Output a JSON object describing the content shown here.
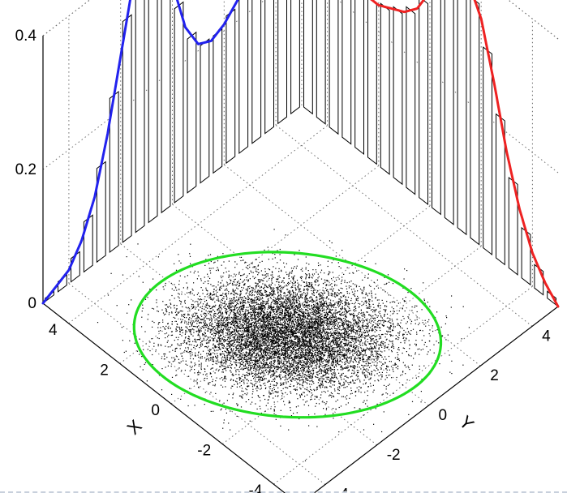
{
  "chart_data": {
    "type": "scatter",
    "title": "",
    "xlabel": "X",
    "ylabel": "Y",
    "xlim": [
      -5,
      5
    ],
    "ylim": [
      -5,
      5
    ],
    "zlim": [
      0,
      0.4
    ],
    "grid": true,
    "x_ticks": [
      "-4",
      "-2",
      "0",
      "2",
      "4"
    ],
    "y_ticks": [
      "-4",
      "-2",
      "0",
      "2",
      "4"
    ],
    "z_ticks": [
      "0",
      "0.2",
      "0.4"
    ],
    "scatter": {
      "count_approx": 10000,
      "mean": [
        -0.5,
        -1.0
      ],
      "std": [
        1.3,
        1.2
      ],
      "correlation": -0.35,
      "color": "#000000"
    },
    "ellipse": {
      "center": [
        -0.5,
        -1.0
      ],
      "color": "#22dd22"
    },
    "marginal_x": {
      "color": "#ee2222",
      "x": [
        -5.0,
        -4.5,
        -4.0,
        -3.5,
        -3.0,
        -2.5,
        -2.0,
        -1.5,
        -1.0,
        -0.5,
        0.0,
        0.5,
        1.0,
        1.5,
        2.0,
        2.5,
        3.0,
        3.5,
        4.0,
        4.5,
        5.0
      ],
      "density": [
        0.0,
        0.02,
        0.05,
        0.1,
        0.17,
        0.26,
        0.34,
        0.38,
        0.39,
        0.37,
        0.32,
        0.28,
        0.26,
        0.25,
        0.24,
        0.24,
        0.25,
        0.27,
        0.29,
        0.31,
        0.33
      ]
    },
    "marginal_y": {
      "color": "#2222ee",
      "x": [
        -5.0,
        -4.5,
        -4.0,
        -3.5,
        -3.0,
        -2.5,
        -2.0,
        -1.5,
        -1.0,
        -0.5,
        0.0,
        0.5,
        1.0,
        1.5,
        2.0,
        2.5,
        3.0,
        3.5,
        4.0,
        4.5,
        5.0
      ],
      "density": [
        0.0,
        0.01,
        0.02,
        0.05,
        0.1,
        0.18,
        0.28,
        0.38,
        0.43,
        0.41,
        0.33,
        0.25,
        0.21,
        0.2,
        0.21,
        0.23,
        0.25,
        0.27,
        0.29,
        0.31,
        0.33
      ]
    }
  }
}
